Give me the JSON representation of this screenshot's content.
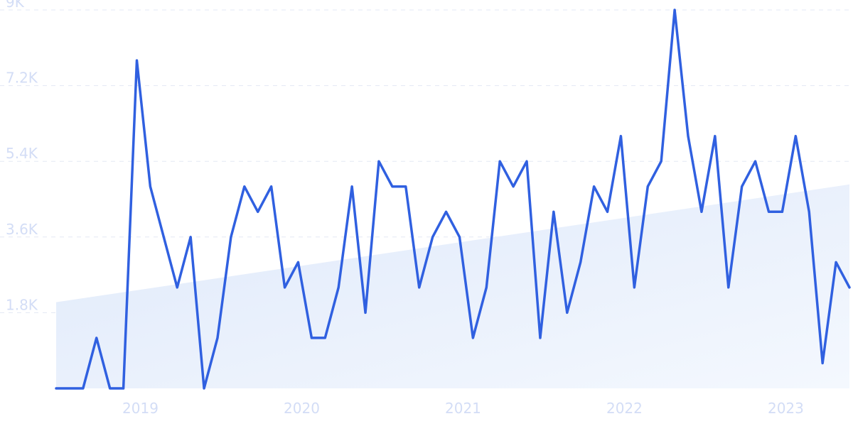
{
  "colors": {
    "line": "#3060e0",
    "trend_fill": "#e3ecfb",
    "grid": "#e3e8f4",
    "tick_text": "#d3ddf6",
    "background": "#ffffff"
  },
  "chart_data": {
    "type": "line",
    "title": "",
    "xlabel": "",
    "ylabel": "",
    "grid": true,
    "legend": "none",
    "y_ticks": [
      {
        "value": 1800,
        "label": "1.8K"
      },
      {
        "value": 3600,
        "label": "3.6K"
      },
      {
        "value": 5400,
        "label": "5.4K"
      },
      {
        "value": 7200,
        "label": "7.2K"
      },
      {
        "value": 9000,
        "label": "9K"
      }
    ],
    "x_ticks": [
      {
        "value": "2019-01",
        "label": "2019"
      },
      {
        "value": "2020-01",
        "label": "2020"
      },
      {
        "value": "2021-01",
        "label": "2021"
      },
      {
        "value": "2022-01",
        "label": "2022"
      },
      {
        "value": "2023-01",
        "label": "2023"
      }
    ],
    "xlim": [
      "2018-07",
      "2023-06"
    ],
    "ylim": [
      0,
      9000
    ],
    "x": [
      "2018-07",
      "2018-08",
      "2018-09",
      "2018-10",
      "2018-11",
      "2018-12",
      "2019-01",
      "2019-02",
      "2019-03",
      "2019-04",
      "2019-05",
      "2019-06",
      "2019-07",
      "2019-08",
      "2019-09",
      "2019-10",
      "2019-11",
      "2019-12",
      "2020-01",
      "2020-02",
      "2020-03",
      "2020-04",
      "2020-05",
      "2020-06",
      "2020-07",
      "2020-08",
      "2020-09",
      "2020-10",
      "2020-11",
      "2020-12",
      "2021-01",
      "2021-02",
      "2021-03",
      "2021-04",
      "2021-05",
      "2021-06",
      "2021-07",
      "2021-08",
      "2021-09",
      "2021-10",
      "2021-11",
      "2021-12",
      "2022-01",
      "2022-02",
      "2022-03",
      "2022-04",
      "2022-05",
      "2022-06",
      "2022-07",
      "2022-08",
      "2022-09",
      "2022-10",
      "2022-11",
      "2022-12",
      "2023-01",
      "2023-02",
      "2023-03",
      "2023-04",
      "2023-05",
      "2023-06"
    ],
    "series": [
      {
        "values": [
          0,
          0,
          0,
          1200,
          0,
          0,
          7800,
          4800,
          3600,
          2400,
          3600,
          0,
          1200,
          3600,
          4800,
          4200,
          4800,
          2400,
          3000,
          1200,
          1200,
          2400,
          4800,
          1800,
          5400,
          4800,
          4800,
          2400,
          3600,
          4200,
          3600,
          1200,
          2400,
          5400,
          4800,
          5400,
          1200,
          4200,
          1800,
          3000,
          4800,
          4200,
          6000,
          2400,
          4800,
          5400,
          9000,
          6000,
          4200,
          6000,
          2400,
          4800,
          5400,
          4200,
          4200,
          6000,
          4200,
          600,
          3000,
          2400
        ]
      }
    ],
    "trend": {
      "start": 2050,
      "end": 4850
    }
  }
}
